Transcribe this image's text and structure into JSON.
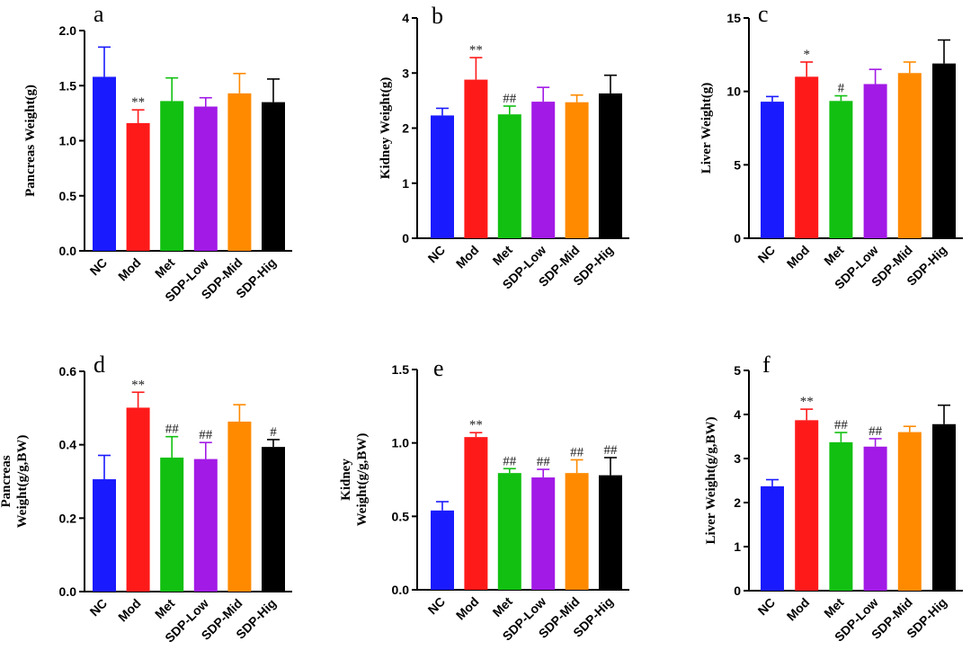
{
  "chart_data": [
    {
      "panel": "a",
      "type": "bar",
      "categories": [
        "NC",
        "Mod",
        "Met",
        "SDP-Low",
        "SDP-Mid",
        "SDP-Hig"
      ],
      "values": [
        1.58,
        1.16,
        1.36,
        1.31,
        1.43,
        1.35
      ],
      "errors": [
        0.27,
        0.12,
        0.21,
        0.08,
        0.18,
        0.21
      ],
      "annotations": [
        "",
        "**",
        "",
        "",
        "",
        ""
      ],
      "ylabel_lines": [
        "Pancreas Weight(g)"
      ],
      "ylim": [
        0.0,
        2.0
      ],
      "yticks": [
        "0.0",
        "0.5",
        "1.0",
        "1.5",
        "2.0"
      ]
    },
    {
      "panel": "b",
      "type": "bar",
      "categories": [
        "NC",
        "Mod",
        "Met",
        "SDP-Low",
        "SDP-Mid",
        "SDP-Hig"
      ],
      "values": [
        2.23,
        2.88,
        2.25,
        2.48,
        2.47,
        2.63
      ],
      "errors": [
        0.13,
        0.4,
        0.15,
        0.26,
        0.13,
        0.33
      ],
      "annotations": [
        "",
        "**",
        "##",
        "",
        "",
        ""
      ],
      "ylabel_lines": [
        "Kidney Weight(g)"
      ],
      "ylim": [
        0,
        4
      ],
      "yticks": [
        "0",
        "1",
        "2",
        "3",
        "4"
      ]
    },
    {
      "panel": "c",
      "type": "bar",
      "categories": [
        "NC",
        "Mod",
        "Met",
        "SDP-Low",
        "SDP-Mid",
        "SDP-Hig"
      ],
      "values": [
        9.3,
        11.0,
        9.35,
        10.5,
        11.25,
        11.9
      ],
      "errors": [
        0.35,
        1.0,
        0.35,
        1.0,
        0.75,
        1.6
      ],
      "annotations": [
        "",
        "*",
        "#",
        "",
        "",
        ""
      ],
      "ylabel_lines": [
        "Liver Weight(g)"
      ],
      "ylim": [
        0,
        15
      ],
      "yticks": [
        "0",
        "5",
        "10",
        "15"
      ]
    },
    {
      "panel": "d",
      "type": "bar",
      "categories": [
        "NC",
        "Mod",
        "Met",
        "SDP-Low",
        "SDP-Mid",
        "SDP-Hig"
      ],
      "values": [
        0.306,
        0.501,
        0.365,
        0.361,
        0.463,
        0.394
      ],
      "errors": [
        0.065,
        0.042,
        0.057,
        0.045,
        0.046,
        0.02
      ],
      "annotations": [
        "",
        "**",
        "##",
        "##",
        "",
        "#"
      ],
      "ylabel_lines": [
        "Pancreas",
        "Weight(g/g,BW)"
      ],
      "ylim": [
        0.0,
        0.6
      ],
      "yticks": [
        "0.0",
        "0.2",
        "0.4",
        "0.6"
      ]
    },
    {
      "panel": "e",
      "type": "bar",
      "categories": [
        "NC",
        "Mod",
        "Met",
        "SDP-Low",
        "SDP-Mid",
        "SDP-Hig"
      ],
      "values": [
        0.54,
        1.04,
        0.795,
        0.765,
        0.795,
        0.78
      ],
      "errors": [
        0.06,
        0.03,
        0.03,
        0.055,
        0.09,
        0.12
      ],
      "annotations": [
        "",
        "**",
        "##",
        "##",
        "##",
        "##"
      ],
      "ylabel_lines": [
        "Kidney",
        "Weight(g/g,BW)"
      ],
      "ylim": [
        0.0,
        1.5
      ],
      "yticks": [
        "0.0",
        "0.5",
        "1.0",
        "1.5"
      ]
    },
    {
      "panel": "f",
      "type": "bar",
      "categories": [
        "NC",
        "Mod",
        "Met",
        "SDP-Low",
        "SDP-Mid",
        "SDP-Hig"
      ],
      "values": [
        2.37,
        3.87,
        3.37,
        3.27,
        3.6,
        3.78
      ],
      "errors": [
        0.15,
        0.25,
        0.22,
        0.18,
        0.13,
        0.43
      ],
      "annotations": [
        "",
        "**",
        "##",
        "##",
        "",
        ""
      ],
      "ylabel_lines": [
        "Liver Weight(g/g,BW)"
      ],
      "ylim": [
        0,
        5
      ],
      "yticks": [
        "0",
        "1",
        "2",
        "3",
        "4",
        "5"
      ]
    }
  ],
  "bar_colors": [
    "#1a1aff",
    "#ff1a1a",
    "#11c011",
    "#a21ae6",
    "#ff8a00",
    "#000000"
  ]
}
